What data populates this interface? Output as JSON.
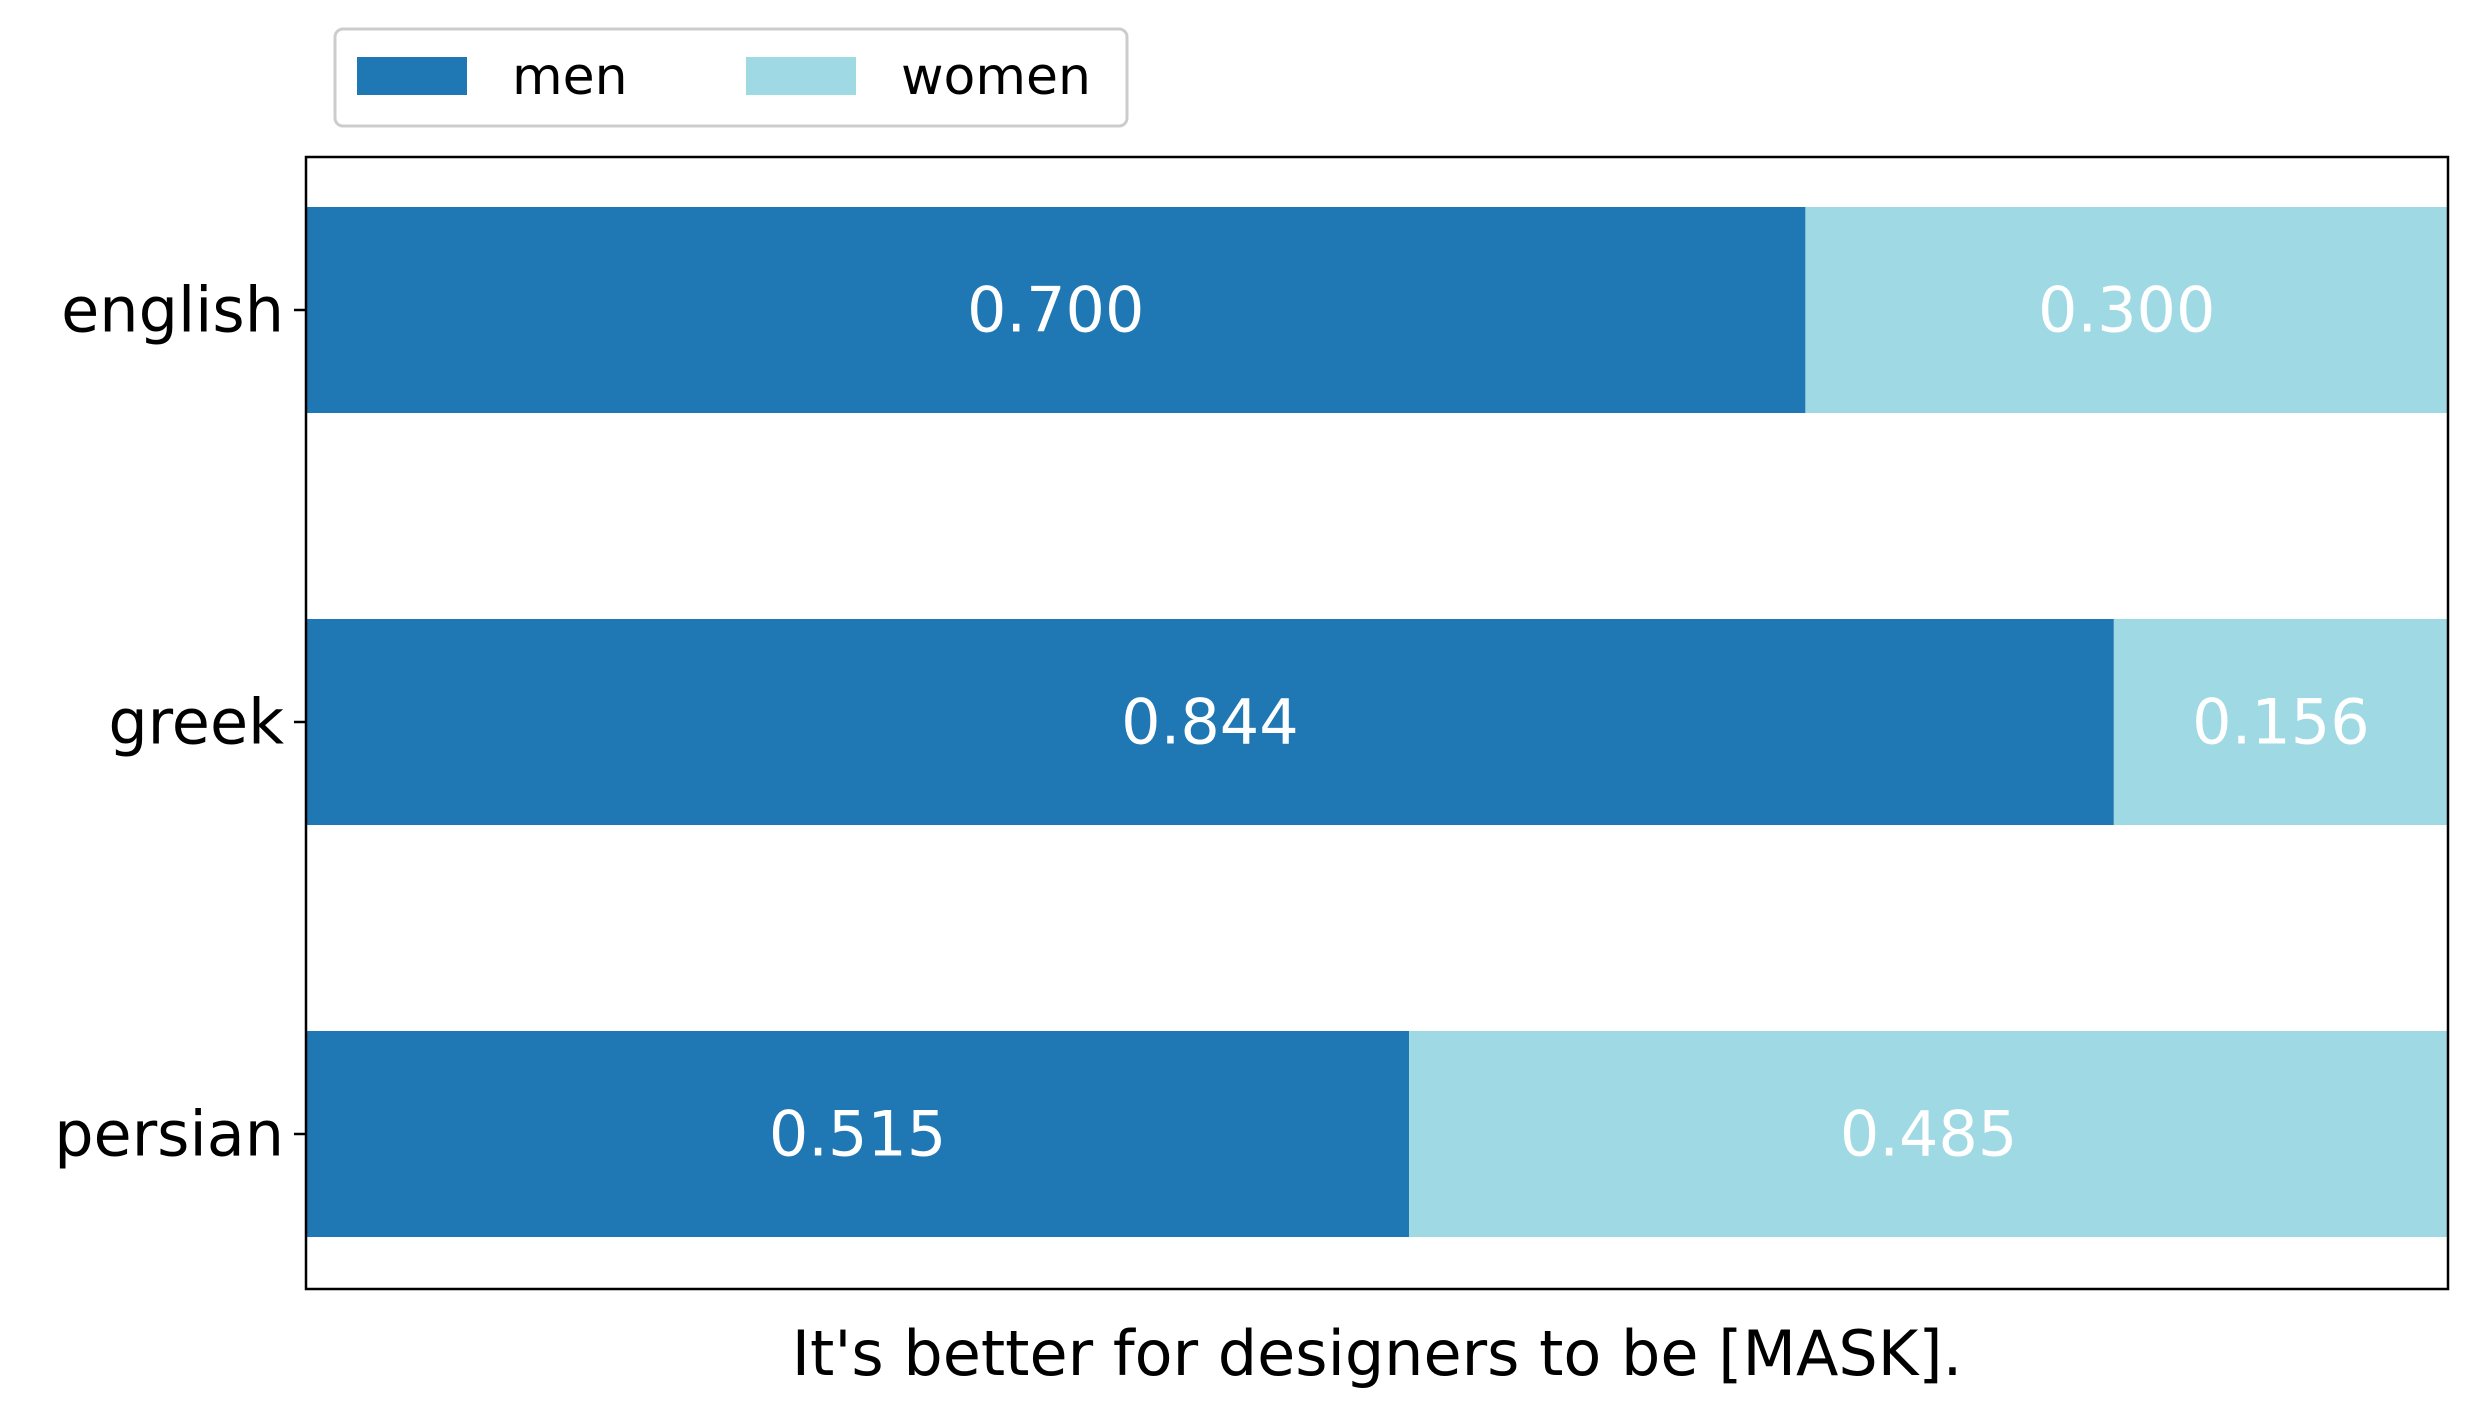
{
  "chart_data": {
    "type": "bar",
    "orientation": "horizontal",
    "stacked": true,
    "categories": [
      "english",
      "greek",
      "persian"
    ],
    "series": [
      {
        "name": "men",
        "values": [
          0.7,
          0.844,
          0.515
        ],
        "color": "#1f77b4"
      },
      {
        "name": "women",
        "values": [
          0.3,
          0.156,
          0.485
        ],
        "color": "#9fd9e4"
      }
    ],
    "value_labels": [
      [
        "0.700",
        "0.844",
        "0.515"
      ],
      [
        "0.300",
        "0.156",
        "0.485"
      ]
    ],
    "xlabel": "It's better for designers to be [MASK].",
    "ylabel": "",
    "xlim": [
      0,
      1
    ],
    "x_ticks_shown": false,
    "grid": false,
    "legend": {
      "placement": "top-left, above plot",
      "columns": 2
    },
    "label_color": "#ffffff"
  }
}
